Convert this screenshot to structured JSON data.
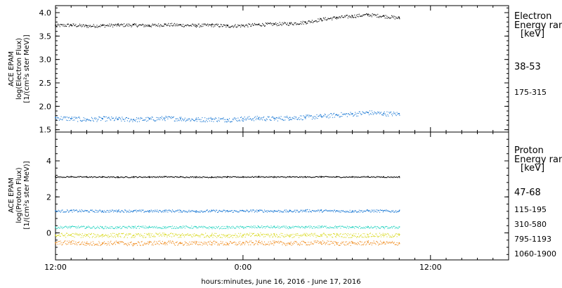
{
  "chart_data": [
    {
      "type": "scatter",
      "panel": "electron",
      "ylabel_lines": [
        "ACE EPAM",
        "log(Electron Flux)",
        "[1/(cm²s ster MeV)]"
      ],
      "legend_title_lines": [
        "Electron",
        "Energy ran",
        "[keV]"
      ],
      "ylim": [
        1.45,
        4.15
      ],
      "yticks": [
        "1.5",
        "2.0",
        "2.5",
        "3.0",
        "3.5",
        "4.0"
      ],
      "ytick_values": [
        1.5,
        2.0,
        2.5,
        3.0,
        3.5,
        4.0
      ],
      "x_hours_start": 12,
      "series": [
        {
          "name": "38-53",
          "color": "#000000",
          "x": [
            12,
            13,
            14,
            15,
            16,
            17,
            18,
            19,
            20,
            21,
            22,
            23,
            24,
            25,
            26,
            27,
            28,
            29,
            30,
            31,
            32,
            33,
            34
          ],
          "y": [
            3.73,
            3.74,
            3.72,
            3.73,
            3.74,
            3.74,
            3.73,
            3.75,
            3.74,
            3.73,
            3.74,
            3.72,
            3.73,
            3.75,
            3.76,
            3.77,
            3.8,
            3.86,
            3.9,
            3.93,
            3.96,
            3.93,
            3.89
          ]
        },
        {
          "name": "175-315",
          "color": "#1a78d4",
          "x": [
            12,
            13,
            14,
            15,
            16,
            17,
            18,
            19,
            20,
            21,
            22,
            23,
            24,
            25,
            26,
            27,
            28,
            29,
            30,
            31,
            32,
            33,
            34
          ],
          "y": [
            1.76,
            1.74,
            1.72,
            1.74,
            1.73,
            1.72,
            1.73,
            1.75,
            1.74,
            1.72,
            1.73,
            1.72,
            1.74,
            1.75,
            1.74,
            1.76,
            1.77,
            1.79,
            1.82,
            1.84,
            1.87,
            1.85,
            1.84
          ]
        }
      ]
    },
    {
      "type": "scatter",
      "panel": "proton",
      "ylabel_lines": [
        "ACE EPAM",
        "log(Proton Flux)",
        "[1/(cm²s ster MeV)]"
      ],
      "legend_title_lines": [
        "Proton",
        "Energy ran",
        "[keV]"
      ],
      "ylim": [
        -1.5,
        5.6
      ],
      "yticks": [
        "0",
        "2",
        "4"
      ],
      "ytick_values": [
        0,
        2,
        4
      ],
      "x_hours_start": 12,
      "series": [
        {
          "name": "47-68",
          "color": "#000000",
          "x": [
            12,
            13,
            14,
            15,
            16,
            17,
            18,
            19,
            20,
            21,
            22,
            23,
            24,
            25,
            26,
            27,
            28,
            29,
            30,
            31,
            32,
            33,
            34
          ],
          "y": [
            3.12,
            3.13,
            3.12,
            3.12,
            3.11,
            3.12,
            3.12,
            3.13,
            3.12,
            3.12,
            3.11,
            3.12,
            3.12,
            3.13,
            3.12,
            3.12,
            3.12,
            3.13,
            3.12,
            3.12,
            3.13,
            3.12,
            3.12
          ]
        },
        {
          "name": "115-195",
          "color": "#1a78d4",
          "x": [
            12,
            13,
            14,
            15,
            16,
            17,
            18,
            19,
            20,
            21,
            22,
            23,
            24,
            25,
            26,
            27,
            28,
            29,
            30,
            31,
            32,
            33,
            34
          ],
          "y": [
            1.22,
            1.24,
            1.23,
            1.22,
            1.24,
            1.23,
            1.22,
            1.24,
            1.23,
            1.22,
            1.23,
            1.22,
            1.23,
            1.24,
            1.23,
            1.22,
            1.25,
            1.24,
            1.23,
            1.22,
            1.24,
            1.23,
            1.22
          ]
        },
        {
          "name": "310-580",
          "color": "#2ad4c2",
          "x": [
            12,
            13,
            14,
            15,
            16,
            17,
            18,
            19,
            20,
            21,
            22,
            23,
            24,
            25,
            26,
            27,
            28,
            29,
            30,
            31,
            32,
            33,
            34
          ],
          "y": [
            0.32,
            0.34,
            0.33,
            0.32,
            0.31,
            0.34,
            0.33,
            0.32,
            0.34,
            0.33,
            0.31,
            0.32,
            0.33,
            0.35,
            0.34,
            0.32,
            0.33,
            0.35,
            0.34,
            0.33,
            0.32,
            0.31,
            0.33
          ]
        },
        {
          "name": "795-1193",
          "color": "#d8d81a",
          "x": [
            12,
            13,
            14,
            15,
            16,
            17,
            18,
            19,
            20,
            21,
            22,
            23,
            24,
            25,
            26,
            27,
            28,
            29,
            30,
            31,
            32,
            33,
            34
          ],
          "y": [
            -0.12,
            -0.1,
            -0.13,
            -0.12,
            -0.11,
            -0.14,
            -0.12,
            -0.1,
            -0.13,
            -0.12,
            -0.11,
            -0.13,
            -0.12,
            -0.1,
            -0.11,
            -0.13,
            -0.12,
            -0.1,
            -0.12,
            -0.13,
            -0.11,
            -0.12,
            -0.12
          ]
        },
        {
          "name": "1060-1900",
          "color": "#f08a1a",
          "x": [
            12,
            13,
            14,
            15,
            16,
            17,
            18,
            19,
            20,
            21,
            22,
            23,
            24,
            25,
            26,
            27,
            28,
            29,
            30,
            31,
            32,
            33,
            34
          ],
          "y": [
            -0.55,
            -0.52,
            -0.58,
            -0.56,
            -0.54,
            -0.6,
            -0.55,
            -0.53,
            -0.57,
            -0.56,
            -0.54,
            -0.58,
            -0.56,
            -0.53,
            -0.55,
            -0.57,
            -0.55,
            -0.52,
            -0.56,
            -0.57,
            -0.54,
            -0.55,
            -0.56
          ]
        }
      ]
    }
  ],
  "x_axis": {
    "xlim_hours": [
      12,
      41
    ],
    "tick_hours": [
      12,
      24,
      36
    ],
    "tick_labels": [
      "12:00",
      "0:00",
      "12:00"
    ],
    "xlabel": "hours:minutes, June 16, 2016 - June 17, 2016"
  }
}
